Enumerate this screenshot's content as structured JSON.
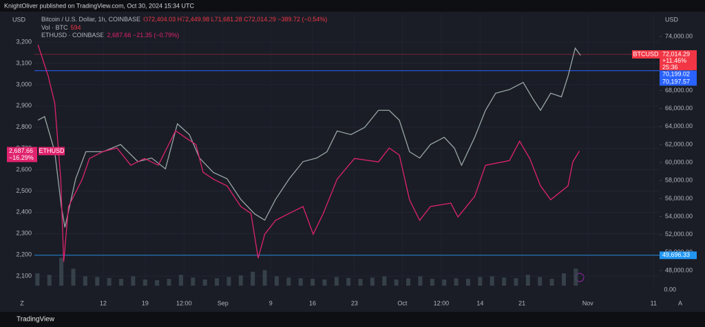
{
  "header": {
    "publisher": "KnightOliver published on TradingView.com, Oct 30, 2024 15:34 UTC",
    "symbol": "Bitcoin / U.S. Dollar, 1h, COINBASE",
    "ohlc": "O72,404.03 H72,449.98 L71,681.28 C72,014.29 −389.72 (−0.54%)",
    "vol_label": "Vol · BTC",
    "vol_value": "594",
    "eth_label": "ETHUSD · COINBASE",
    "eth_quote": "2,687.66 −21.35 (−0.79%)",
    "left_unit": "USD",
    "right_unit": "USD",
    "left_button": "Z",
    "right_button": "A",
    "footer": "TradingView"
  },
  "chart_data": [
    {
      "type": "line",
      "grid": true,
      "xlim": [
        0.5,
        105
      ],
      "xticks": [
        {
          "value": 12,
          "label": "12"
        },
        {
          "value": 19,
          "label": "19"
        },
        {
          "value": 25.5,
          "label": "12:00"
        },
        {
          "value": 32,
          "label": "Sep"
        },
        {
          "value": 40,
          "label": "9"
        },
        {
          "value": 47,
          "label": "16"
        },
        {
          "value": 54,
          "label": "23"
        },
        {
          "value": 62,
          "label": "Oct"
        },
        {
          "value": 68.5,
          "label": "12:00"
        },
        {
          "value": 75,
          "label": "14"
        },
        {
          "value": 82,
          "label": "21"
        },
        {
          "value": 93,
          "label": "Nov"
        },
        {
          "value": 104,
          "label": "11"
        }
      ],
      "ylim": [
        2055,
        3333
      ],
      "yticks": [
        {
          "value": 2100,
          "label": "2,100"
        },
        {
          "value": 2200,
          "label": "2,200"
        },
        {
          "value": 2300,
          "label": "2,300"
        },
        {
          "value": 2400,
          "label": "2,400"
        },
        {
          "value": 2500,
          "label": "2,500"
        },
        {
          "value": 2600,
          "label": "2,600"
        },
        {
          "value": 2700,
          "label": "2,700"
        },
        {
          "value": 2800,
          "label": "2,800"
        },
        {
          "value": 2900,
          "label": "2,900"
        },
        {
          "value": 3000,
          "label": "3,000"
        },
        {
          "value": 3100,
          "label": "3,100"
        },
        {
          "value": 3200,
          "label": "3,200"
        }
      ],
      "y2lim": [
        46317,
        76524
      ],
      "y2ticks": [
        {
          "value": 48000,
          "label": "48,000.00"
        },
        {
          "value": 50000,
          "label": "50,000.00"
        },
        {
          "value": 52000,
          "label": "52,000.00"
        },
        {
          "value": 54000,
          "label": "54,000.00"
        },
        {
          "value": 56000,
          "label": "56,000.00"
        },
        {
          "value": 58000,
          "label": "58,000.00"
        },
        {
          "value": 60000,
          "label": "60,000.00"
        },
        {
          "value": 62000,
          "label": "62,000.00"
        },
        {
          "value": 64000,
          "label": "64,000.00"
        },
        {
          "value": 66000,
          "label": "66,000.00"
        },
        {
          "value": 68000,
          "label": "68,000.00"
        },
        {
          "value": 70000,
          "label": "70,000.00"
        },
        {
          "value": 72000,
          "label": "72,000.00"
        },
        {
          "value": 74000,
          "label": "74,000.00"
        }
      ],
      "series": [
        {
          "name": "BTCUSD",
          "color": "#9aa7a6",
          "axis": "y2",
          "x": [
            1.1,
            2.2,
            3.9,
            5.0,
            5.6,
            7.4,
            9.1,
            12,
            14.9,
            17.8,
            20.1,
            22.4,
            24.4,
            26.4,
            28.1,
            30.4,
            32.7,
            35,
            37.3,
            39,
            40.8,
            43.1,
            45.4,
            47.7,
            49.4,
            51.1,
            53.4,
            55.7,
            58,
            59.8,
            61.5,
            63.2,
            64.9,
            66.7,
            69,
            70.7,
            71.9,
            74.1,
            75.9,
            77.6,
            79.9,
            82.2,
            83.9,
            85.1,
            86.8,
            88.6,
            89.7,
            90.9,
            91.8
          ],
          "values": [
            64700,
            65100,
            61200,
            55100,
            52800,
            58200,
            61200,
            61200,
            62000,
            60100,
            60500,
            59300,
            64300,
            63100,
            60500,
            58900,
            58200,
            55900,
            54300,
            53600,
            55900,
            58200,
            60100,
            60500,
            61200,
            63500,
            63100,
            63900,
            65800,
            65800,
            64700,
            61200,
            60500,
            62000,
            62800,
            61600,
            59700,
            62800,
            65800,
            67700,
            68100,
            68900,
            67000,
            65800,
            67700,
            67300,
            69600,
            72700,
            71900
          ],
          "last_value": 72014.29,
          "last_label": "72,014.29",
          "change": "+11.46%",
          "countdown": "25:36"
        },
        {
          "name": "ETHUSD",
          "color": "#e0236e",
          "axis": "y",
          "x": [
            1.1,
            2.8,
            3.9,
            4.9,
            5.4,
            6.2,
            8.5,
            9.7,
            12,
            14.3,
            16.6,
            18.9,
            21.2,
            24.1,
            25.8,
            27.5,
            28.7,
            30.4,
            32.7,
            35,
            36.7,
            37.9,
            39,
            40.8,
            43.1,
            45.4,
            47.1,
            48.8,
            51.1,
            54,
            58,
            59.8,
            61.5,
            63.2,
            64.9,
            66.7,
            70.1,
            71.3,
            74.1,
            75.9,
            79.9,
            81.6,
            83.3,
            85.1,
            86.8,
            89.7,
            90.5,
            91.6
          ],
          "values": [
            3187,
            3041,
            2912,
            2556,
            2168,
            2427,
            2556,
            2653,
            2686,
            2702,
            2621,
            2653,
            2621,
            2783,
            2750,
            2718,
            2588,
            2556,
            2524,
            2427,
            2395,
            2184,
            2297,
            2362,
            2395,
            2427,
            2297,
            2395,
            2556,
            2653,
            2637,
            2702,
            2669,
            2459,
            2362,
            2427,
            2443,
            2378,
            2475,
            2621,
            2643,
            2734,
            2653,
            2524,
            2459,
            2524,
            2637,
            2688
          ],
          "last_value": 2687.66,
          "last_label": "2,687.66",
          "change": "−16.29%"
        }
      ],
      "price_lines": [
        {
          "value": 70199.02,
          "label": "70,199.02",
          "color": "#2962ff"
        },
        {
          "value": 70197.57,
          "label": "70,197.57",
          "color": "#2962ff"
        },
        {
          "value": 49696.33,
          "label": "49,696.33",
          "color": "#2196f3"
        }
      ]
    },
    {
      "type": "bar",
      "color": "#3d4a52",
      "ylim": [
        0,
        100
      ],
      "yticks": [
        {
          "value": 0,
          "label": "0.00"
        }
      ],
      "x": [
        1,
        3,
        5,
        7,
        9,
        11,
        13,
        15,
        17,
        19,
        21,
        23,
        25,
        27,
        29,
        31,
        33,
        35,
        37,
        39,
        41,
        43,
        45,
        47,
        49,
        51,
        53,
        55,
        57,
        59,
        61,
        63,
        65,
        67,
        69,
        71,
        73,
        75,
        77,
        79,
        81,
        83,
        85,
        87,
        89,
        91
      ],
      "values": [
        40,
        35,
        90,
        55,
        30,
        28,
        25,
        22,
        30,
        20,
        18,
        22,
        35,
        26,
        20,
        24,
        28,
        33,
        45,
        50,
        30,
        26,
        24,
        22,
        20,
        28,
        25,
        22,
        26,
        30,
        20,
        24,
        30,
        22,
        20,
        24,
        22,
        28,
        30,
        26,
        24,
        35,
        28,
        22,
        40,
        55
      ]
    }
  ]
}
